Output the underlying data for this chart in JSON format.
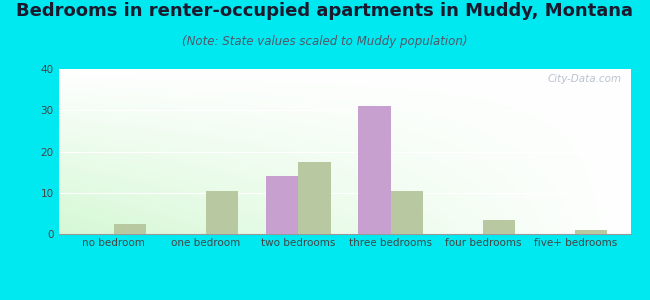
{
  "title": "Bedrooms in renter-occupied apartments in Muddy, Montana",
  "subtitle": "(Note: State values scaled to Muddy population)",
  "categories": [
    "no bedroom",
    "one bedroom",
    "two bedrooms",
    "three bedrooms",
    "four bedrooms",
    "five+ bedrooms"
  ],
  "muddy_values": [
    0,
    0,
    14,
    31,
    0,
    0
  ],
  "montana_values": [
    2.5,
    10.5,
    17.5,
    10.5,
    3.5,
    1.0
  ],
  "muddy_color": "#c8a0d0",
  "montana_color": "#b8c8a0",
  "ylim": [
    0,
    40
  ],
  "yticks": [
    0,
    10,
    20,
    30,
    40
  ],
  "background_outer": "#00e8f0",
  "bar_width": 0.35,
  "title_fontsize": 13,
  "subtitle_fontsize": 8.5,
  "tick_fontsize": 7.5,
  "legend_fontsize": 9,
  "watermark_text": "City-Data.com"
}
